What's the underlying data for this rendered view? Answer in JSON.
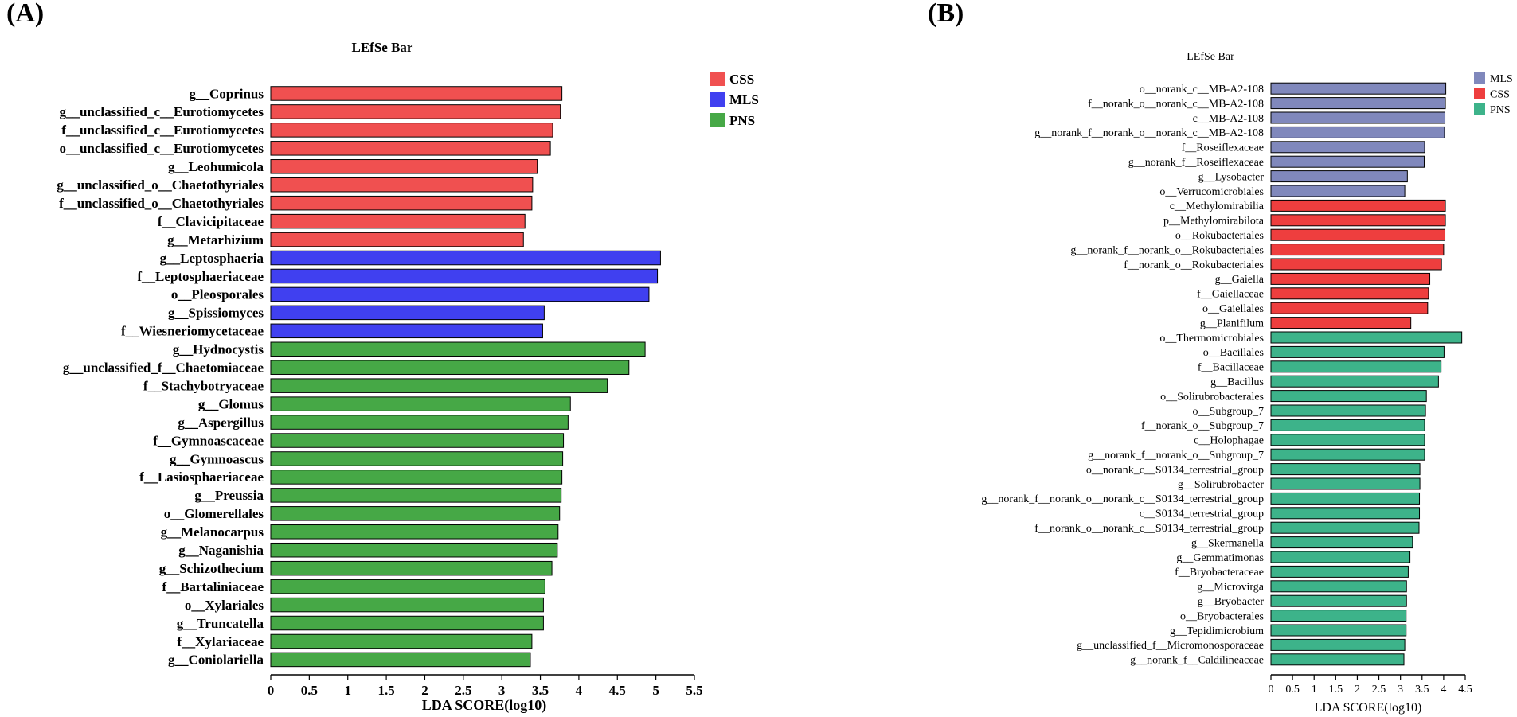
{
  "panels": {
    "a_label": "(A)",
    "b_label": "(B)"
  },
  "chart_data": [
    {
      "type": "bar",
      "orientation": "horizontal",
      "title": "LEfSe Bar",
      "xlabel": "LDA SCORE(log10)",
      "ylabel": "",
      "xlim": [
        0,
        5.5
      ],
      "xticks": [
        "0",
        "0.5",
        "1",
        "1.5",
        "2",
        "2.5",
        "3",
        "3.5",
        "4",
        "4.5",
        "5",
        "5.5"
      ],
      "legend_position": "top-right",
      "legend": [
        {
          "name": "CSS",
          "color": "#f05050"
        },
        {
          "name": "MLS",
          "color": "#4040f0"
        },
        {
          "name": "PNS",
          "color": "#46a846"
        }
      ],
      "categories": [
        "g__Coprinus",
        "g__unclassified_c__Eurotiomycetes",
        "f__unclassified_c__Eurotiomycetes",
        "o__unclassified_c__Eurotiomycetes",
        "g__Leohumicola",
        "g__unclassified_o__Chaetothyriales",
        "f__unclassified_o__Chaetothyriales",
        "f__Clavicipitaceae",
        "g__Metarhizium",
        "g__Leptosphaeria",
        "f__Leptosphaeriaceae",
        "o__Pleosporales",
        "g__Spissiomyces",
        "f__Wiesneriomycetaceae",
        "g__Hydnocystis",
        "g__unclassified_f__Chaetomiaceae",
        "f__Stachybotryaceae",
        "g__Glomus",
        "g__Aspergillus",
        "f__Gymnoascaceae",
        "g__Gymnoascus",
        "f__Lasiosphaeriaceae",
        "g__Preussia",
        "o__Glomerellales",
        "g__Melanocarpus",
        "g__Naganishia",
        "g__Schizothecium",
        "f__Bartaliniaceae",
        "o__Xylariales",
        "g__Truncatella",
        "f__Xylariaceae",
        "g__Coniolariella"
      ],
      "values": [
        3.78,
        3.76,
        3.66,
        3.63,
        3.46,
        3.4,
        3.39,
        3.3,
        3.28,
        5.06,
        5.02,
        4.91,
        3.55,
        3.53,
        4.86,
        4.65,
        4.37,
        3.89,
        3.86,
        3.8,
        3.79,
        3.78,
        3.77,
        3.75,
        3.73,
        3.72,
        3.65,
        3.56,
        3.54,
        3.54,
        3.39,
        3.37
      ],
      "groups": [
        "CSS",
        "CSS",
        "CSS",
        "CSS",
        "CSS",
        "CSS",
        "CSS",
        "CSS",
        "CSS",
        "MLS",
        "MLS",
        "MLS",
        "MLS",
        "MLS",
        "PNS",
        "PNS",
        "PNS",
        "PNS",
        "PNS",
        "PNS",
        "PNS",
        "PNS",
        "PNS",
        "PNS",
        "PNS",
        "PNS",
        "PNS",
        "PNS",
        "PNS",
        "PNS",
        "PNS",
        "PNS"
      ]
    },
    {
      "type": "bar",
      "orientation": "horizontal",
      "title": "LEfSe Bar",
      "xlabel": "LDA SCORE(log10)",
      "ylabel": "",
      "xlim": [
        0,
        4.5
      ],
      "xticks": [
        "0",
        "0.5",
        "1",
        "1.5",
        "2",
        "2.5",
        "3",
        "3.5",
        "4",
        "4.5"
      ],
      "legend_position": "top-right",
      "legend": [
        {
          "name": "MLS",
          "color": "#8088bc"
        },
        {
          "name": "CSS",
          "color": "#ee3e3e"
        },
        {
          "name": "PNS",
          "color": "#3db38a"
        }
      ],
      "categories": [
        "o__norank_c__MB-A2-108",
        "f__norank_o__norank_c__MB-A2-108",
        "c__MB-A2-108",
        "g__norank_f__norank_o__norank_c__MB-A2-108",
        "f__Roseiflexaceae",
        "g__norank_f__Roseiflexaceae",
        "g__Lysobacter",
        "o__Verrucomicrobiales",
        "c__Methylomirabilia",
        "p__Methylomirabilota",
        "o__Rokubacteriales",
        "g__norank_f__norank_o__Rokubacteriales",
        "f__norank_o__Rokubacteriales",
        "g__Gaiella",
        "f__Gaiellaceae",
        "o__Gaiellales",
        "g__Planifilum",
        "o__Thermomicrobiales",
        "o__Bacillales",
        "f__Bacillaceae",
        "g__Bacillus",
        "o__Solirubrobacterales",
        "o__Subgroup_7",
        "f__norank_o__Subgroup_7",
        "c__Holophagae",
        "g__norank_f__norank_o__Subgroup_7",
        "o__norank_c__S0134_terrestrial_group",
        "g__Solirubrobacter",
        "g__norank_f__norank_o__norank_c__S0134_terrestrial_group",
        "c__S0134_terrestrial_group",
        "f__norank_o__norank_c__S0134_terrestrial_group",
        "g__Skermanella",
        "g__Gemmatimonas",
        "f__Bryobacteraceae",
        "g__Microvirga",
        "g__Bryobacter",
        "o__Bryobacterales",
        "g__Tepidimicrobium",
        "g__unclassified_f__Micromonosporaceae",
        "g__norank_f__Caldilineaceae"
      ],
      "values": [
        4.05,
        4.04,
        4.03,
        4.02,
        3.56,
        3.55,
        3.16,
        3.1,
        4.04,
        4.04,
        4.03,
        4.0,
        3.95,
        3.68,
        3.65,
        3.63,
        3.24,
        4.42,
        4.01,
        3.94,
        3.88,
        3.6,
        3.58,
        3.56,
        3.56,
        3.56,
        3.45,
        3.45,
        3.44,
        3.44,
        3.43,
        3.28,
        3.22,
        3.18,
        3.14,
        3.14,
        3.13,
        3.13,
        3.1,
        3.08
      ],
      "groups": [
        "MLS",
        "MLS",
        "MLS",
        "MLS",
        "MLS",
        "MLS",
        "MLS",
        "MLS",
        "CSS",
        "CSS",
        "CSS",
        "CSS",
        "CSS",
        "CSS",
        "CSS",
        "CSS",
        "CSS",
        "PNS",
        "PNS",
        "PNS",
        "PNS",
        "PNS",
        "PNS",
        "PNS",
        "PNS",
        "PNS",
        "PNS",
        "PNS",
        "PNS",
        "PNS",
        "PNS",
        "PNS",
        "PNS",
        "PNS",
        "PNS",
        "PNS",
        "PNS",
        "PNS",
        "PNS",
        "PNS"
      ]
    }
  ]
}
